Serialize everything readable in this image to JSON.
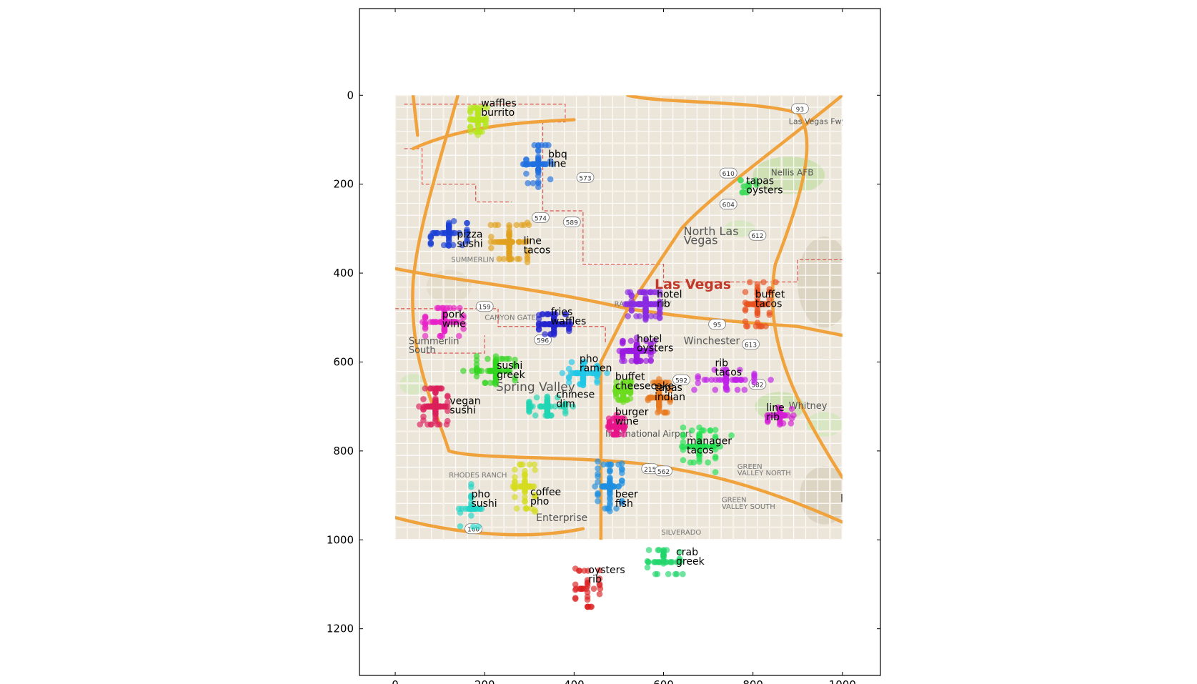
{
  "chart_data": {
    "type": "scatter",
    "title": "",
    "xlabel": "",
    "ylabel": "",
    "xlim": [
      -80,
      1085
    ],
    "ylim": [
      1305,
      -195
    ],
    "y_inverted": true,
    "grid": false,
    "legend": "none",
    "x_ticks": [
      0,
      200,
      400,
      600,
      800,
      1000
    ],
    "y_ticks": [
      0,
      200,
      400,
      600,
      800,
      1000,
      1200
    ],
    "background_map": {
      "extent": [
        0,
        1000,
        0,
        1000
      ],
      "labels": [
        {
          "text": "Las Vegas",
          "x": 580,
          "y": 435,
          "color": "#c0392b",
          "size": 19,
          "bold": true
        },
        {
          "text": "North Las",
          "x": 645,
          "y": 315,
          "color": "#555555",
          "size": 16
        },
        {
          "text": "Vegas",
          "x": 645,
          "y": 335,
          "color": "#555555",
          "size": 16
        },
        {
          "text": "Spring Valley",
          "x": 225,
          "y": 665,
          "color": "#555555",
          "size": 17
        },
        {
          "text": "Enterprise",
          "x": 315,
          "y": 958,
          "color": "#555555",
          "size": 14
        },
        {
          "text": "Winchester",
          "x": 645,
          "y": 560,
          "color": "#555555",
          "size": 14
        },
        {
          "text": "Nellis AFB",
          "x": 840,
          "y": 180,
          "color": "#555555",
          "size": 12
        },
        {
          "text": "SUMMERLIN",
          "x": 125,
          "y": 375,
          "color": "#777777",
          "size": 10
        },
        {
          "text": "RANCHO OAKEY",
          "x": 490,
          "y": 475,
          "color": "#777777",
          "size": 10
        },
        {
          "text": "CANYON GATE",
          "x": 200,
          "y": 505,
          "color": "#777777",
          "size": 10
        },
        {
          "text": "RHODES RANCH",
          "x": 120,
          "y": 860,
          "color": "#777777",
          "size": 10
        },
        {
          "text": "GREEN",
          "x": 765,
          "y": 840,
          "color": "#777777",
          "size": 10
        },
        {
          "text": "VALLEY NORTH",
          "x": 765,
          "y": 855,
          "color": "#777777",
          "size": 10
        },
        {
          "text": "GREEN",
          "x": 730,
          "y": 915,
          "color": "#777777",
          "size": 10
        },
        {
          "text": "VALLEY SOUTH",
          "x": 730,
          "y": 930,
          "color": "#777777",
          "size": 10
        },
        {
          "text": "SILVERADO",
          "x": 595,
          "y": 988,
          "color": "#777777",
          "size": 10
        },
        {
          "text": "International Airport",
          "x": 470,
          "y": 768,
          "color": "#555555",
          "size": 12
        },
        {
          "text": "Whitney",
          "x": 880,
          "y": 705,
          "color": "#555555",
          "size": 13
        },
        {
          "text": "Summerlin",
          "x": 30,
          "y": 560,
          "color": "#555555",
          "size": 13
        },
        {
          "text": "South",
          "x": 30,
          "y": 580,
          "color": "#555555",
          "size": 13
        },
        {
          "text": "He",
          "x": 995,
          "y": 915,
          "color": "#555555",
          "size": 16
        },
        {
          "text": "Las Vegas Fwy",
          "x": 880,
          "y": 65,
          "color": "#555555",
          "size": 11
        }
      ],
      "shields": [
        "93",
        "610",
        "604",
        "574",
        "573",
        "612",
        "159",
        "596",
        "589",
        "592",
        "582",
        "613",
        "95",
        "215",
        "160",
        "562"
      ]
    },
    "clusters": [
      {
        "labels": [
          "waffles",
          "burrito"
        ],
        "label_x": 192,
        "label_y": 25,
        "color": "#b5e61d",
        "cx": 185,
        "cy": 55,
        "spread": [
          38,
          60
        ],
        "n": 70
      },
      {
        "labels": [
          "bbq",
          "line"
        ],
        "label_x": 342,
        "label_y": 140,
        "color": "#1f6fe0",
        "cx": 320,
        "cy": 155,
        "spread": [
          60,
          95
        ],
        "n": 55
      },
      {
        "labels": [
          "tapas",
          "oysters"
        ],
        "label_x": 785,
        "label_y": 200,
        "color": "#3ddc5a",
        "cx": 790,
        "cy": 205,
        "spread": [
          40,
          30
        ],
        "n": 20
      },
      {
        "labels": [
          "pizza",
          "sushi"
        ],
        "label_x": 138,
        "label_y": 320,
        "color": "#1a3fd6",
        "cx": 120,
        "cy": 310,
        "spread": [
          90,
          60
        ],
        "n": 55
      },
      {
        "labels": [
          "line",
          "tacos"
        ],
        "label_x": 287,
        "label_y": 335,
        "color": "#e0a21f",
        "cx": 255,
        "cy": 330,
        "spread": [
          90,
          85
        ],
        "n": 85
      },
      {
        "labels": [
          "buffet",
          "tacos"
        ],
        "label_x": 805,
        "label_y": 455,
        "color": "#e8501f",
        "cx": 810,
        "cy": 470,
        "spread": [
          60,
          110
        ],
        "n": 65
      },
      {
        "labels": [
          "hotel",
          "rib"
        ],
        "label_x": 585,
        "label_y": 455,
        "color": "#8a2be2",
        "cx": 560,
        "cy": 470,
        "spread": [
          70,
          60
        ],
        "n": 110
      },
      {
        "labels": [
          "pork",
          "wine"
        ],
        "label_x": 105,
        "label_y": 500,
        "color": "#e820c8",
        "cx": 110,
        "cy": 510,
        "spread": [
          95,
          70
        ],
        "n": 85
      },
      {
        "labels": [
          "fries",
          "waffles"
        ],
        "label_x": 348,
        "label_y": 495,
        "color": "#2323cf",
        "cx": 355,
        "cy": 515,
        "spread": [
          75,
          50
        ],
        "n": 80
      },
      {
        "labels": [
          "hotel",
          "oysters"
        ],
        "label_x": 540,
        "label_y": 555,
        "color": "#9b1ae0",
        "cx": 540,
        "cy": 575,
        "spread": [
          70,
          50
        ],
        "n": 95
      },
      {
        "labels": [
          "sushi",
          "greek"
        ],
        "label_x": 227,
        "label_y": 615,
        "color": "#32d620",
        "cx": 225,
        "cy": 620,
        "spread": [
          95,
          60
        ],
        "n": 80
      },
      {
        "labels": [
          "pho",
          "ramen"
        ],
        "label_x": 412,
        "label_y": 600,
        "color": "#20c8e8",
        "cx": 420,
        "cy": 625,
        "spread": [
          70,
          55
        ],
        "n": 75
      },
      {
        "labels": [
          "rib",
          "tacos"
        ],
        "label_x": 715,
        "label_y": 610,
        "color": "#c020e8",
        "cx": 740,
        "cy": 640,
        "spread": [
          140,
          50
        ],
        "n": 55
      },
      {
        "labels": [
          "buffet",
          "cheesecake"
        ],
        "label_x": 492,
        "label_y": 640,
        "color": "#6cdc1f",
        "cx": 510,
        "cy": 665,
        "spread": [
          35,
          45
        ],
        "n": 100
      },
      {
        "labels": [
          "tapas",
          "indian"
        ],
        "label_x": 580,
        "label_y": 665,
        "color": "#e87a1f",
        "cx": 590,
        "cy": 680,
        "spread": [
          55,
          75
        ],
        "n": 70
      },
      {
        "labels": [
          "chinese",
          "dim"
        ],
        "label_x": 360,
        "label_y": 680,
        "color": "#20d6b4",
        "cx": 340,
        "cy": 700,
        "spread": [
          90,
          45
        ],
        "n": 80
      },
      {
        "labels": [
          "vegan",
          "sushi"
        ],
        "label_x": 122,
        "label_y": 695,
        "color": "#dc1f5a",
        "cx": 90,
        "cy": 700,
        "spread": [
          60,
          90
        ],
        "n": 95
      },
      {
        "labels": [
          "line",
          "rib"
        ],
        "label_x": 830,
        "label_y": 710,
        "color": "#d41fd6",
        "cx": 860,
        "cy": 720,
        "spread": [
          60,
          40
        ],
        "n": 45
      },
      {
        "labels": [
          "burger",
          "wine"
        ],
        "label_x": 492,
        "label_y": 720,
        "color": "#e8148a",
        "cx": 495,
        "cy": 745,
        "spread": [
          35,
          40
        ],
        "n": 95
      },
      {
        "labels": [
          "manager",
          "tacos"
        ],
        "label_x": 652,
        "label_y": 785,
        "color": "#20e050",
        "cx": 680,
        "cy": 790,
        "spread": [
          80,
          80
        ],
        "n": 80
      },
      {
        "labels": [
          "coffee",
          "pho"
        ],
        "label_x": 302,
        "label_y": 900,
        "color": "#d6dc1f",
        "cx": 290,
        "cy": 880,
        "spread": [
          50,
          110
        ],
        "n": 75
      },
      {
        "labels": [
          "beer",
          "fish"
        ],
        "label_x": 492,
        "label_y": 905,
        "color": "#1f8fe0",
        "cx": 480,
        "cy": 880,
        "spread": [
          60,
          110
        ],
        "n": 75
      },
      {
        "labels": [
          "pho",
          "sushi"
        ],
        "label_x": 170,
        "label_y": 905,
        "color": "#20d6c8",
        "cx": 170,
        "cy": 930,
        "spread": [
          55,
          90
        ],
        "n": 35
      },
      {
        "labels": [
          "crab",
          "greek"
        ],
        "label_x": 628,
        "label_y": 1035,
        "color": "#20d66c",
        "cx": 600,
        "cy": 1050,
        "spread": [
          80,
          60
        ],
        "n": 45
      },
      {
        "labels": [
          "oysters",
          "rib"
        ],
        "label_x": 432,
        "label_y": 1075,
        "color": "#dc1f1f",
        "cx": 430,
        "cy": 1110,
        "spread": [
          60,
          90
        ],
        "n": 35
      }
    ]
  }
}
